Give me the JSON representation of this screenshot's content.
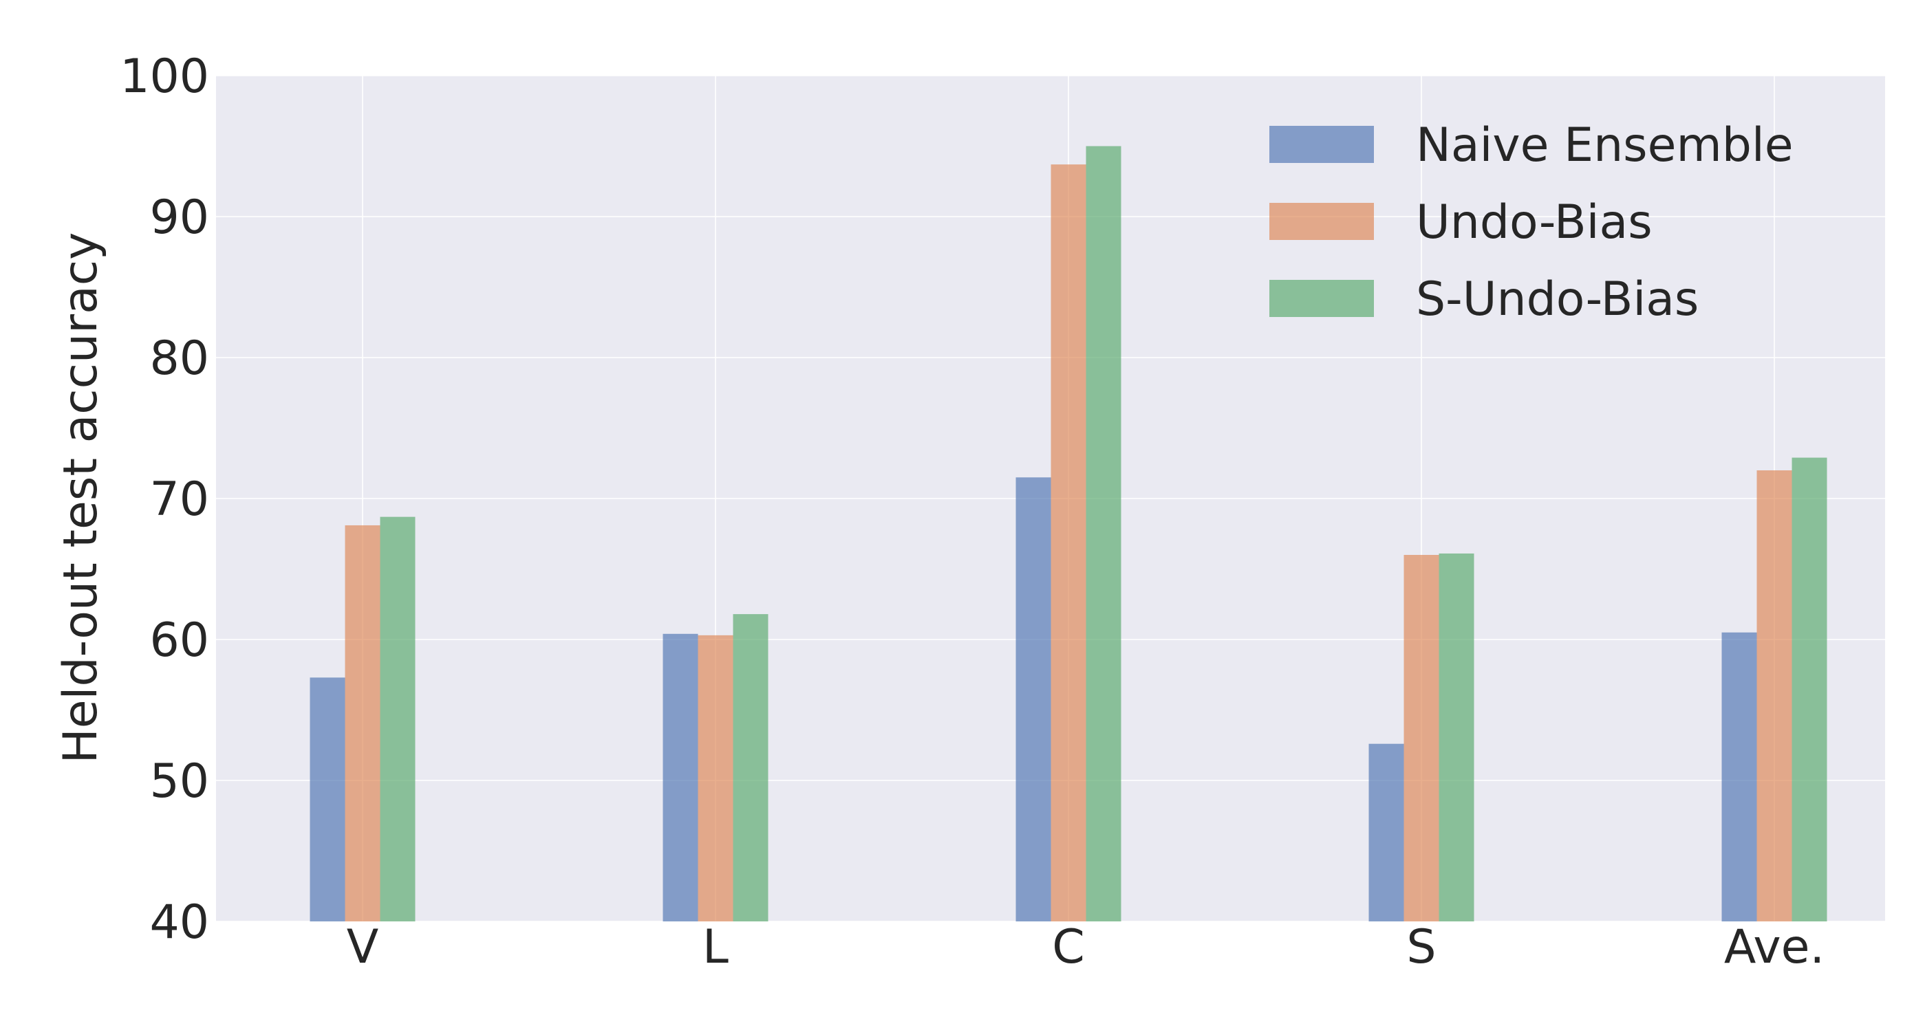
{
  "chart_data": {
    "type": "bar",
    "categories": [
      "V",
      "L",
      "C",
      "S",
      "Ave."
    ],
    "series": [
      {
        "name": "Naive Ensemble",
        "color": "#4c72b0",
        "values": [
          57.3,
          60.4,
          71.5,
          52.6,
          60.5
        ]
      },
      {
        "name": "Undo-Bias",
        "color": "#dd8452",
        "values": [
          68.1,
          60.3,
          93.7,
          66.0,
          72.0
        ]
      },
      {
        "name": "S-Undo-Bias",
        "color": "#55a868",
        "values": [
          68.7,
          61.8,
          95.0,
          66.1,
          72.9
        ]
      }
    ],
    "title": "",
    "xlabel": "",
    "ylabel": "Held-out test accuracy",
    "ylim": [
      40,
      100
    ],
    "yticks": [
      40,
      50,
      60,
      70,
      80,
      90,
      100
    ],
    "grid": true,
    "legend_position": "top-right",
    "background_color": "#eaeaf2",
    "grid_color": "#ffffff",
    "text_color": "#262626"
  }
}
